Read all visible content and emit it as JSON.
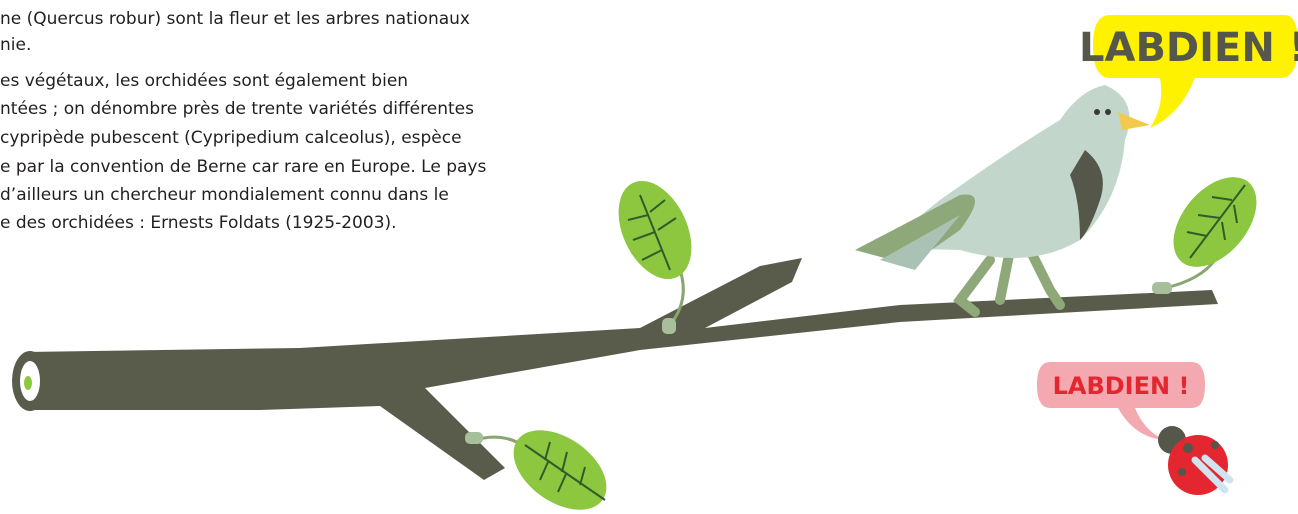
{
  "paragraph": {
    "lines": [
      "ne (Quercus robur) sont la fleur et les arbres nationaux",
      "nie.",
      "es végétaux, les orchidées sont également bien",
      "ntées ; on dénombre près de trente variétés différentes",
      "cypripède pubescent (Cypripedium calceolus), espèce",
      "e par la convention de Berne car rare en Europe. Le pays",
      "d’ailleurs un chercheur mondialement connu dans le",
      "e des orchidées : Ernests Foldats (1925-2003)."
    ]
  },
  "bird_bubble": {
    "text": "LABDIEN !"
  },
  "ladybug_bubble": {
    "text": "LABDIEN !"
  }
}
